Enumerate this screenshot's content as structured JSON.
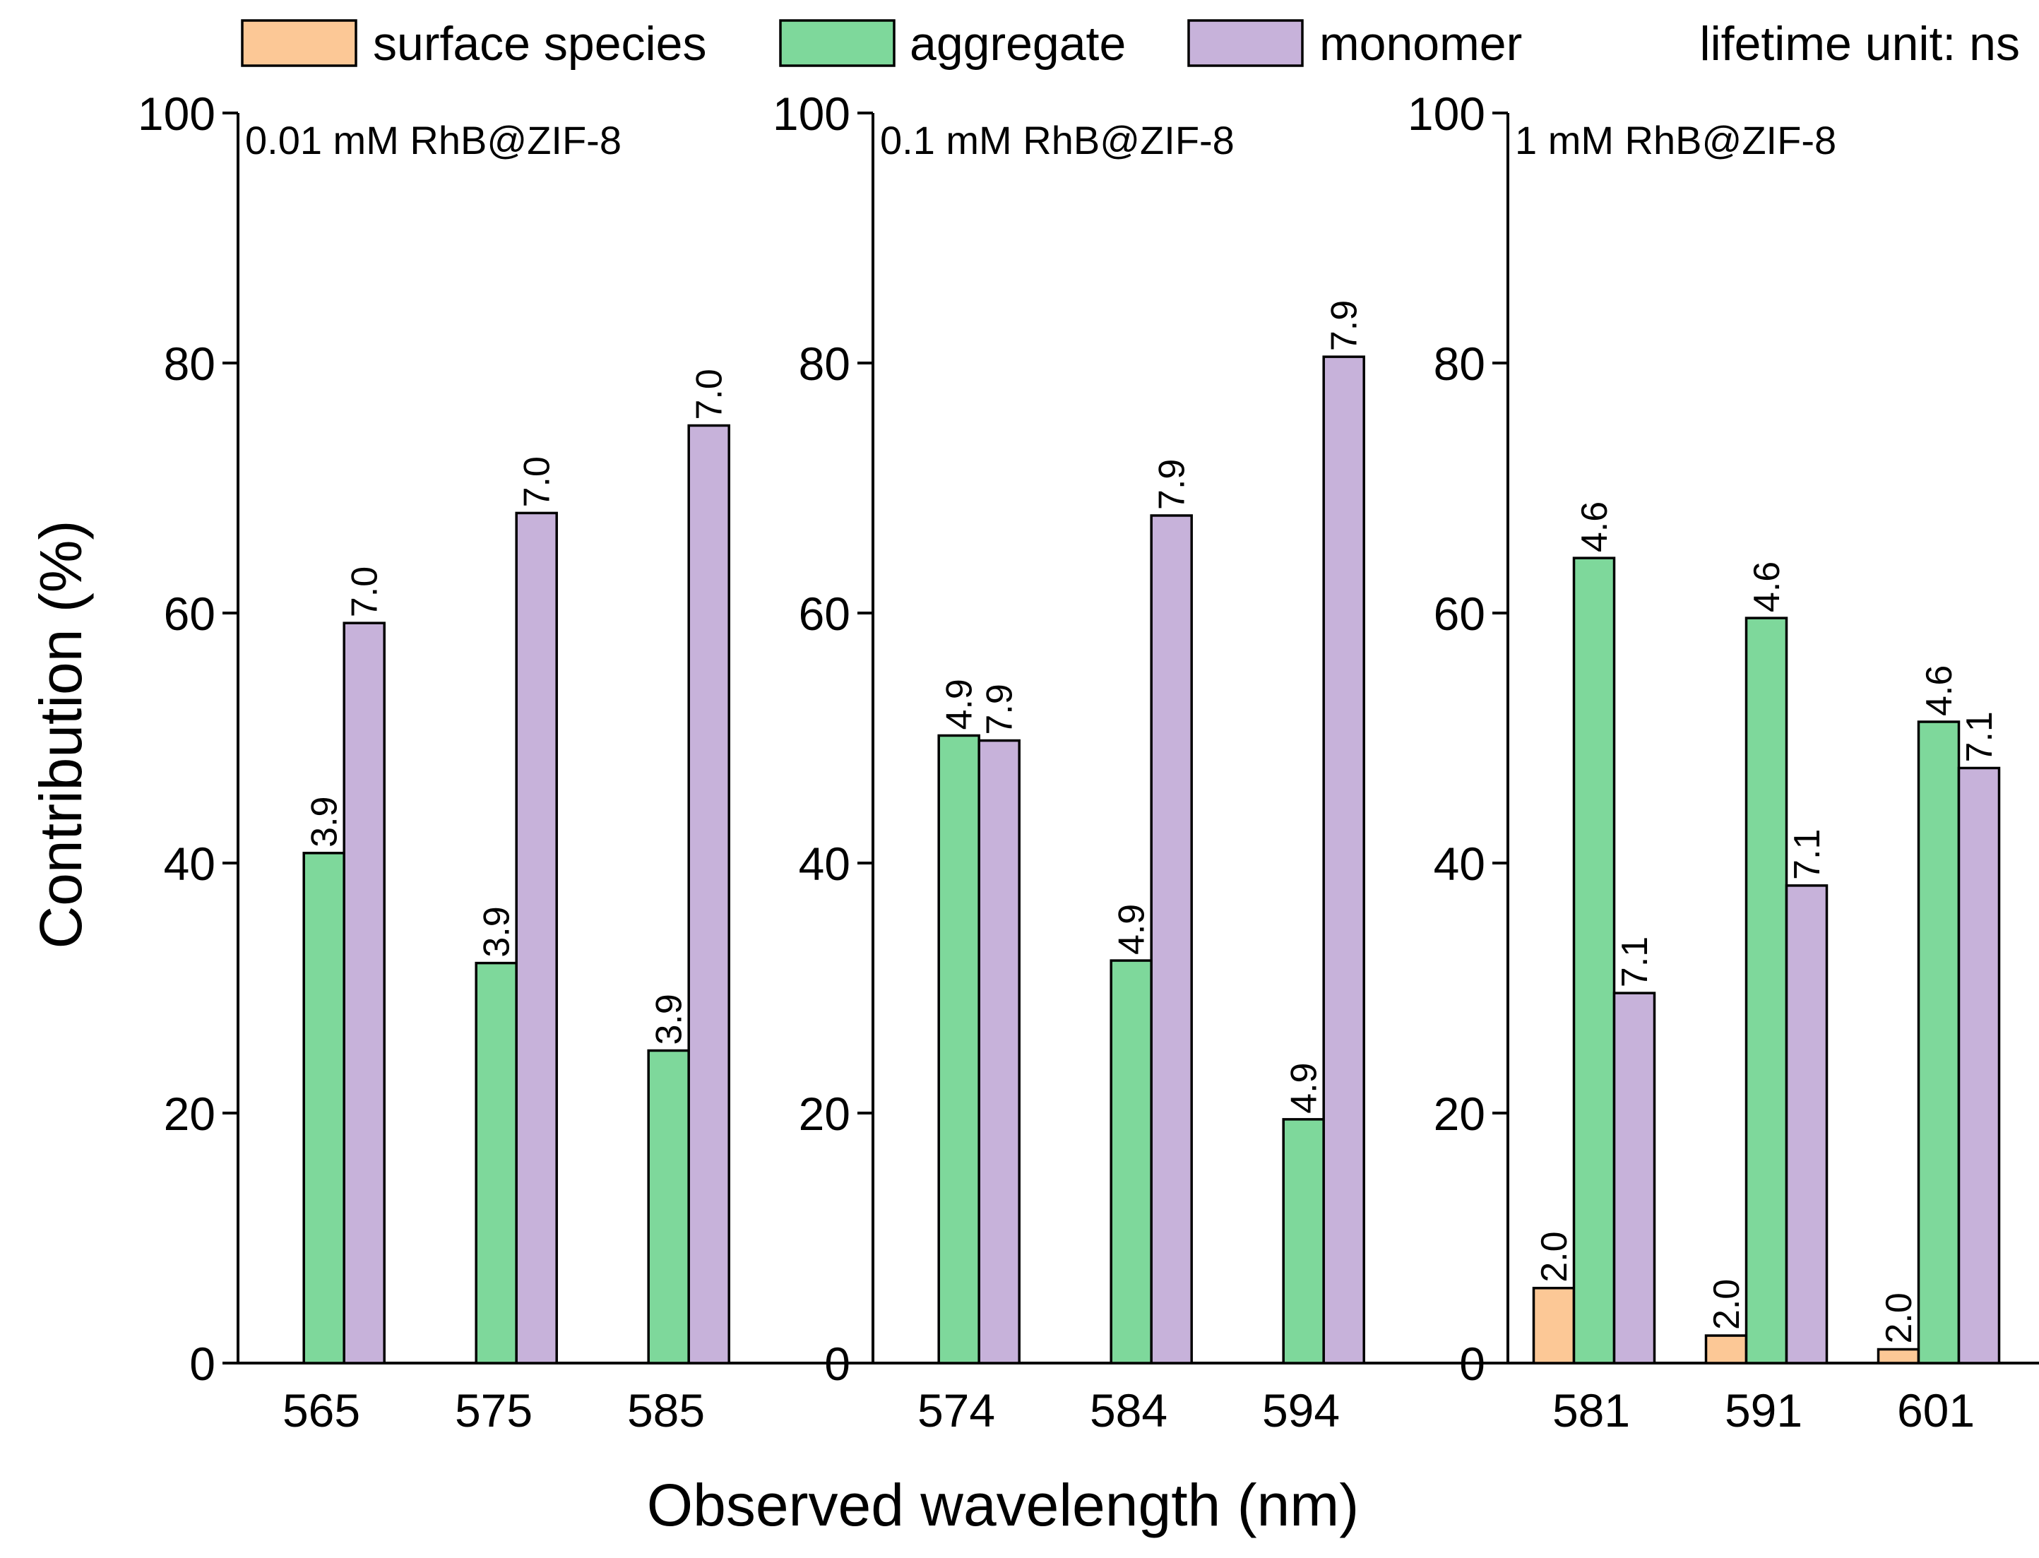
{
  "chart_data": {
    "type": "bar",
    "xlabel": "Observed wavelength (nm)",
    "ylabel": "Contribution (%)",
    "ylim": [
      0,
      100
    ],
    "yticks": [
      "0",
      "20",
      "40",
      "60",
      "80",
      "100"
    ],
    "lifetime_note": "lifetime unit: ns",
    "legend": [
      {
        "key": "surface",
        "name": "surface species",
        "color": "#FCC896"
      },
      {
        "key": "aggregate",
        "name": "aggregate",
        "color": "#7ED89B"
      },
      {
        "key": "monomer",
        "name": "monomer",
        "color": "#C7B2DA"
      }
    ],
    "panels": [
      {
        "title": "0.01 mM RhB@ZIF-8",
        "categories": [
          "565",
          "575",
          "585"
        ],
        "series": [
          {
            "key": "aggregate",
            "values": [
              40.8,
              32.0,
              25.0
            ],
            "lifetimes": [
              "3.9",
              "3.9",
              "3.9"
            ]
          },
          {
            "key": "monomer",
            "values": [
              59.2,
              68.0,
              75.0
            ],
            "lifetimes": [
              "7.0",
              "7.0",
              "7.0"
            ]
          }
        ]
      },
      {
        "title": "0.1 mM RhB@ZIF-8",
        "categories": [
          "574",
          "584",
          "594"
        ],
        "series": [
          {
            "key": "aggregate",
            "values": [
              50.2,
              32.2,
              19.5
            ],
            "lifetimes": [
              "4.9",
              "4.9",
              "4.9"
            ]
          },
          {
            "key": "monomer",
            "values": [
              49.8,
              67.8,
              80.5
            ],
            "lifetimes": [
              "7.9",
              "7.9",
              "7.9"
            ]
          }
        ]
      },
      {
        "title": "1 mM RhB@ZIF-8",
        "categories": [
          "581",
          "591",
          "601"
        ],
        "series": [
          {
            "key": "surface",
            "values": [
              6.0,
              2.2,
              1.1
            ],
            "lifetimes": [
              "2.0",
              "2.0",
              "2.0"
            ]
          },
          {
            "key": "aggregate",
            "values": [
              64.4,
              59.6,
              51.3
            ],
            "lifetimes": [
              "4.6",
              "4.6",
              "4.6"
            ]
          },
          {
            "key": "monomer",
            "values": [
              29.6,
              38.2,
              47.6
            ],
            "lifetimes": [
              "7.1",
              "7.1",
              "7.1"
            ]
          }
        ]
      }
    ]
  }
}
